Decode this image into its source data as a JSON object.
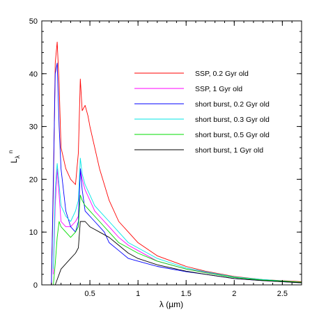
{
  "chart_data": {
    "type": "line",
    "title": "",
    "xlabel": "λ   (µm)",
    "ylabel": "L",
    "ylabel_sub": "λ",
    "ylabel_sup": "n",
    "xlim": [
      0.0,
      2.7
    ],
    "ylim": [
      0,
      50
    ],
    "x_ticks": [
      0.5,
      1,
      1.5,
      2,
      2.5
    ],
    "x_tick_labels": [
      "0.5",
      "1",
      "1.5",
      "2",
      "2.5"
    ],
    "y_ticks": [
      0,
      10,
      20,
      30,
      40,
      50
    ],
    "y_tick_labels": [
      "0",
      "10",
      "20",
      "30",
      "40",
      "50"
    ],
    "grid": false,
    "legend_position": "top-right",
    "series": [
      {
        "name": "SSP, 0.2 Gyr old",
        "color": "#ff0000",
        "x": [
          0.1,
          0.12,
          0.14,
          0.16,
          0.18,
          0.2,
          0.25,
          0.3,
          0.35,
          0.38,
          0.4,
          0.42,
          0.45,
          0.48,
          0.5,
          0.55,
          0.6,
          0.65,
          0.7,
          0.8,
          0.9,
          1.0,
          1.2,
          1.5,
          1.7,
          2.0,
          2.3,
          2.7
        ],
        "y": [
          0,
          18,
          42,
          46,
          38,
          26,
          22,
          20,
          19,
          25,
          39,
          33,
          34,
          32,
          30,
          26,
          22,
          19,
          16,
          12,
          10,
          8,
          5.5,
          3.5,
          2.6,
          1.6,
          1.0,
          0.6
        ]
      },
      {
        "name": "SSP, 1 Gyr old",
        "color": "#ff00ff",
        "x": [
          0.12,
          0.14,
          0.16,
          0.18,
          0.2,
          0.25,
          0.3,
          0.35,
          0.38,
          0.4,
          0.42,
          0.45,
          0.5,
          0.55,
          0.6,
          0.7,
          0.8,
          0.9,
          1.0,
          1.2,
          1.5,
          1.7,
          2.0,
          2.3,
          2.7
        ],
        "y": [
          2,
          15,
          22,
          17,
          12,
          11,
          11,
          12,
          13,
          22,
          20,
          18,
          16,
          14,
          13,
          11,
          9,
          7.5,
          6.5,
          4.5,
          3.0,
          2.4,
          1.4,
          0.9,
          0.5
        ]
      },
      {
        "name": "short burst, 0.2 Gyr old",
        "color": "#0000ff",
        "x": [
          0.1,
          0.12,
          0.14,
          0.16,
          0.18,
          0.2,
          0.25,
          0.3,
          0.35,
          0.38,
          0.4,
          0.42,
          0.45,
          0.5,
          0.55,
          0.6,
          0.65,
          0.7,
          0.8,
          0.9,
          1.0,
          1.2,
          1.5,
          1.7,
          2.0,
          2.3,
          2.7
        ],
        "y": [
          0,
          20,
          40,
          42,
          30,
          22,
          14,
          11,
          10,
          12,
          22,
          18,
          14,
          13,
          12,
          11,
          10,
          8,
          6.5,
          5,
          4.5,
          3.5,
          2.5,
          2.0,
          1.2,
          0.8,
          0.4
        ]
      },
      {
        "name": "short burst, 0.3 Gyr old",
        "color": "#00e5e5",
        "x": [
          0.12,
          0.14,
          0.16,
          0.18,
          0.2,
          0.25,
          0.3,
          0.35,
          0.38,
          0.4,
          0.42,
          0.45,
          0.5,
          0.55,
          0.6,
          0.7,
          0.8,
          0.9,
          1.0,
          1.2,
          1.5,
          1.7,
          2.0,
          2.3,
          2.7
        ],
        "y": [
          3,
          18,
          23,
          19,
          15,
          13,
          12,
          14,
          16,
          24,
          21,
          19,
          17,
          15,
          14,
          12,
          10,
          8,
          7,
          5,
          3.2,
          2.5,
          1.5,
          1.0,
          0.5
        ]
      },
      {
        "name": "short burst, 0.5 Gyr old",
        "color": "#00dd00",
        "x": [
          0.12,
          0.14,
          0.16,
          0.18,
          0.2,
          0.25,
          0.3,
          0.35,
          0.38,
          0.4,
          0.42,
          0.45,
          0.5,
          0.55,
          0.6,
          0.7,
          0.8,
          0.9,
          1.0,
          1.2,
          1.5,
          1.7,
          2.0,
          2.3,
          2.7
        ],
        "y": [
          0,
          4,
          9,
          12,
          11,
          10,
          9,
          10,
          11,
          17,
          16,
          15,
          14,
          13,
          12,
          10,
          8,
          7,
          6,
          4.5,
          3.0,
          2.3,
          1.4,
          0.9,
          0.5
        ]
      },
      {
        "name": "short burst, 1 Gyr old",
        "color": "#000000",
        "x": [
          0.14,
          0.16,
          0.18,
          0.2,
          0.25,
          0.3,
          0.35,
          0.38,
          0.4,
          0.42,
          0.45,
          0.5,
          0.55,
          0.6,
          0.7,
          0.8,
          0.9,
          1.0,
          1.2,
          1.5,
          1.7,
          2.0,
          2.3,
          2.7
        ],
        "y": [
          0,
          1,
          2,
          3,
          4,
          5,
          6,
          7,
          12,
          12,
          12,
          11,
          10.5,
          10,
          9,
          7.5,
          6,
          5,
          3.8,
          2.6,
          2.0,
          1.2,
          0.8,
          0.4
        ]
      }
    ]
  }
}
